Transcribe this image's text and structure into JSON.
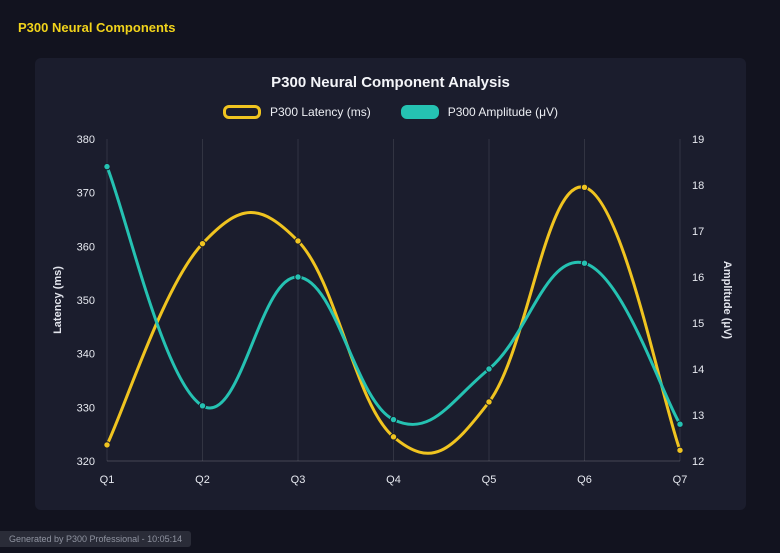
{
  "page": {
    "header": "P300 Neural Components",
    "footer": "Generated by P300 Professional - 10:05:14"
  },
  "chart_data": {
    "type": "line",
    "title": "P300 Neural Component Analysis",
    "categories": [
      "Q1",
      "Q2",
      "Q3",
      "Q4",
      "Q5",
      "Q6",
      "Q7"
    ],
    "series": [
      {
        "name": "P300 Latency (ms)",
        "axis": "left",
        "color": "#f0c420",
        "swatch": "outline",
        "values": [
          323,
          360.5,
          361,
          324.5,
          331,
          371,
          322
        ]
      },
      {
        "name": "P300 Amplitude (μV)",
        "axis": "right",
        "color": "#25c2b2",
        "swatch": "solid",
        "values": [
          18.4,
          13.2,
          16.0,
          12.9,
          14.0,
          16.3,
          12.8
        ]
      }
    ],
    "left_axis": {
      "label": "Latency (ms)",
      "min": 320,
      "max": 380,
      "step": 10
    },
    "right_axis": {
      "label": "Amplitude (μV)",
      "min": 12,
      "max": 19,
      "step": 1
    },
    "grid": "vertical",
    "grid_color": "rgba(255,255,255,0.10)",
    "axis_line_color": "rgba(255,255,255,0.18)",
    "legend_position": "top"
  }
}
